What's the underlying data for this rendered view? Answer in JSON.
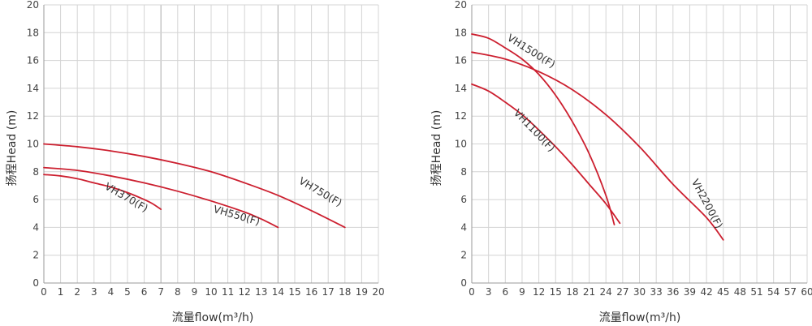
{
  "chart_data": [
    {
      "type": "line",
      "xlabel": "流量flow(m³/h)",
      "ylabel": "扬程Head (m)",
      "xlim": [
        0,
        20
      ],
      "ylim": [
        0,
        20
      ],
      "xticks": [
        0,
        1,
        2,
        3,
        4,
        5,
        6,
        7,
        8,
        9,
        10,
        11,
        12,
        13,
        14,
        15,
        16,
        17,
        18,
        19,
        20
      ],
      "yticks": [
        0,
        2,
        4,
        6,
        8,
        10,
        12,
        14,
        16,
        18,
        20
      ],
      "major_x": [
        7,
        14
      ],
      "grid": true,
      "line_color": "#cc1f2f",
      "series": [
        {
          "name": "VH370(F)",
          "x": [
            0,
            1,
            2,
            3,
            4,
            5,
            6,
            6.5,
            7
          ],
          "y": [
            7.8,
            7.7,
            7.5,
            7.2,
            6.9,
            6.5,
            6.0,
            5.7,
            5.3
          ]
        },
        {
          "name": "VH550(F)",
          "x": [
            0,
            2,
            4,
            6,
            8,
            10,
            12,
            13,
            14
          ],
          "y": [
            8.3,
            8.1,
            7.7,
            7.2,
            6.6,
            5.9,
            5.1,
            4.6,
            4.0
          ]
        },
        {
          "name": "VH750(F)",
          "x": [
            0,
            2,
            4,
            6,
            8,
            10,
            12,
            14,
            16,
            18
          ],
          "y": [
            10.0,
            9.8,
            9.5,
            9.1,
            8.6,
            8.0,
            7.2,
            6.3,
            5.2,
            4.0
          ]
        }
      ],
      "labels": [
        {
          "text": "VH370(F)",
          "x": 3.6,
          "y": 6.8,
          "angle": 30
        },
        {
          "text": "VH550(F)",
          "x": 10.1,
          "y": 5.1,
          "angle": 16
        },
        {
          "text": "VH750(F)",
          "x": 15.2,
          "y": 7.2,
          "angle": 30
        }
      ]
    },
    {
      "type": "line",
      "xlabel": "流量flow(m³/h)",
      "ylabel": "扬程Head (m)",
      "xlim": [
        0,
        60
      ],
      "ylim": [
        0,
        20
      ],
      "xticks": [
        0,
        3,
        6,
        9,
        12,
        15,
        18,
        21,
        24,
        27,
        30,
        33,
        36,
        39,
        42,
        45,
        48,
        51,
        54,
        57,
        60
      ],
      "yticks": [
        0,
        2,
        4,
        6,
        8,
        10,
        12,
        14,
        16,
        18,
        20
      ],
      "major_x": [],
      "grid": true,
      "line_color": "#cc1f2f",
      "series": [
        {
          "name": "VH1100(F)",
          "x": [
            0,
            3,
            6,
            9,
            12,
            15,
            18,
            21,
            24,
            26.5
          ],
          "y": [
            14.3,
            13.8,
            13.0,
            12.1,
            11.0,
            9.8,
            8.5,
            7.1,
            5.7,
            4.3
          ]
        },
        {
          "name": "VH1500(F)",
          "x": [
            0,
            3,
            6,
            9,
            12,
            15,
            18,
            21,
            24,
            25.5
          ],
          "y": [
            17.9,
            17.6,
            16.9,
            16.1,
            15.0,
            13.5,
            11.6,
            9.3,
            6.3,
            4.2
          ]
        },
        {
          "name": "VH2200(F)",
          "x": [
            0,
            6,
            12,
            18,
            24,
            30,
            36,
            42,
            45
          ],
          "y": [
            16.6,
            16.1,
            15.2,
            13.9,
            12.1,
            9.8,
            7.1,
            4.7,
            3.1
          ]
        }
      ],
      "labels": [
        {
          "text": "VH1500(F)",
          "x": 6.2,
          "y": 17.5,
          "angle": 32
        },
        {
          "text": "VH1100(F)",
          "x": 7.4,
          "y": 12.2,
          "angle": 46
        },
        {
          "text": "VH2200(F)",
          "x": 39.3,
          "y": 7.3,
          "angle": 62
        }
      ]
    }
  ]
}
